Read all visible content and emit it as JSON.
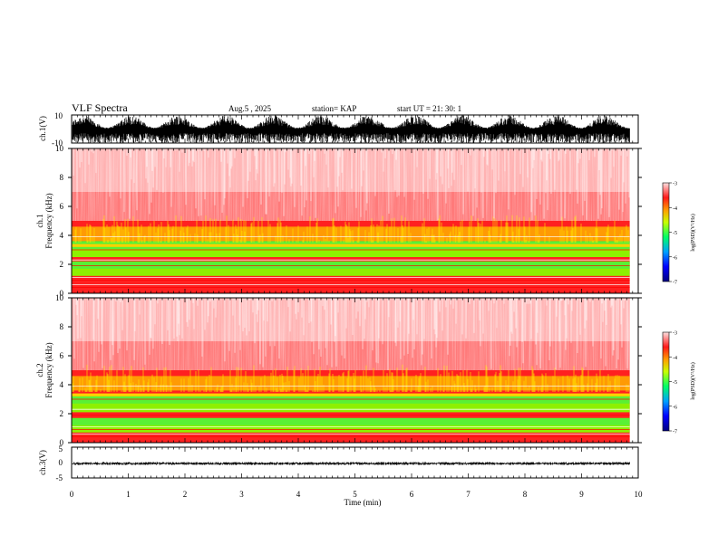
{
  "header": {
    "title": "VLF Spectra",
    "date": "Aug.5  , 2025",
    "station": "station= KAP",
    "start": "start  UT =   21: 30: 1"
  },
  "colors": {
    "spectrogram_low": "#0000ff",
    "spectrogram_mid": "#00ff00",
    "spectrogram_high": "#ff0000",
    "waveform": "#000000"
  },
  "chart_data": [
    {
      "type": "line",
      "name": "ch1-waveform",
      "ylabel": "ch.1(V)",
      "ylim": [
        -10,
        10
      ],
      "ytick_labels": [
        "10",
        "-10"
      ],
      "xlim": [
        0,
        10
      ],
      "trace_band": [
        -10,
        10
      ],
      "trace_end_min": 9.85
    },
    {
      "type": "heatmap",
      "name": "ch1-spectrogram",
      "ylabel_lines": [
        "ch.1",
        "Frequency (kHz)"
      ],
      "ylim": [
        0,
        10
      ],
      "yticks": [
        0,
        2,
        4,
        6,
        8,
        10
      ],
      "xlim": [
        0,
        10
      ],
      "data_end_min": 9.85,
      "green_bands_khz": [
        [
          1.2,
          2.2
        ],
        [
          2.5,
          3.6
        ]
      ],
      "colorbar": {
        "label": "log(PSD)(V²/Hz)",
        "range": [
          -7,
          -3
        ],
        "ticks": [
          "-3",
          "-4",
          "-5",
          "-6",
          "-7"
        ]
      }
    },
    {
      "type": "heatmap",
      "name": "ch2-spectrogram",
      "ylabel_lines": [
        "ch.2",
        "Frequency (kHz)"
      ],
      "ylim": [
        0,
        10
      ],
      "yticks": [
        0,
        2,
        4,
        6,
        8,
        10
      ],
      "xlim": [
        0,
        10
      ],
      "data_end_min": 9.85,
      "green_bands_khz": [
        [
          0.7,
          1.7
        ],
        [
          2.1,
          3.3
        ]
      ],
      "colorbar": {
        "label": "log(PSD)(V²/Hz)",
        "range": [
          -7,
          -3
        ],
        "ticks": [
          "-3",
          "-4",
          "-5",
          "-6",
          "-7"
        ]
      }
    },
    {
      "type": "line",
      "name": "ch3-waveform",
      "ylabel": "ch.3(V)",
      "ylim": [
        -5,
        5
      ],
      "ytick_labels": [
        "5",
        "0",
        "-5"
      ],
      "xlim": [
        0,
        10
      ],
      "trace_band": [
        -0.8,
        0.2
      ],
      "trace_end_min": 9.85
    }
  ],
  "x_axis": {
    "label": "Time (min)",
    "ticks": [
      0,
      1,
      2,
      3,
      4,
      5,
      6,
      7,
      8,
      9,
      10
    ]
  }
}
